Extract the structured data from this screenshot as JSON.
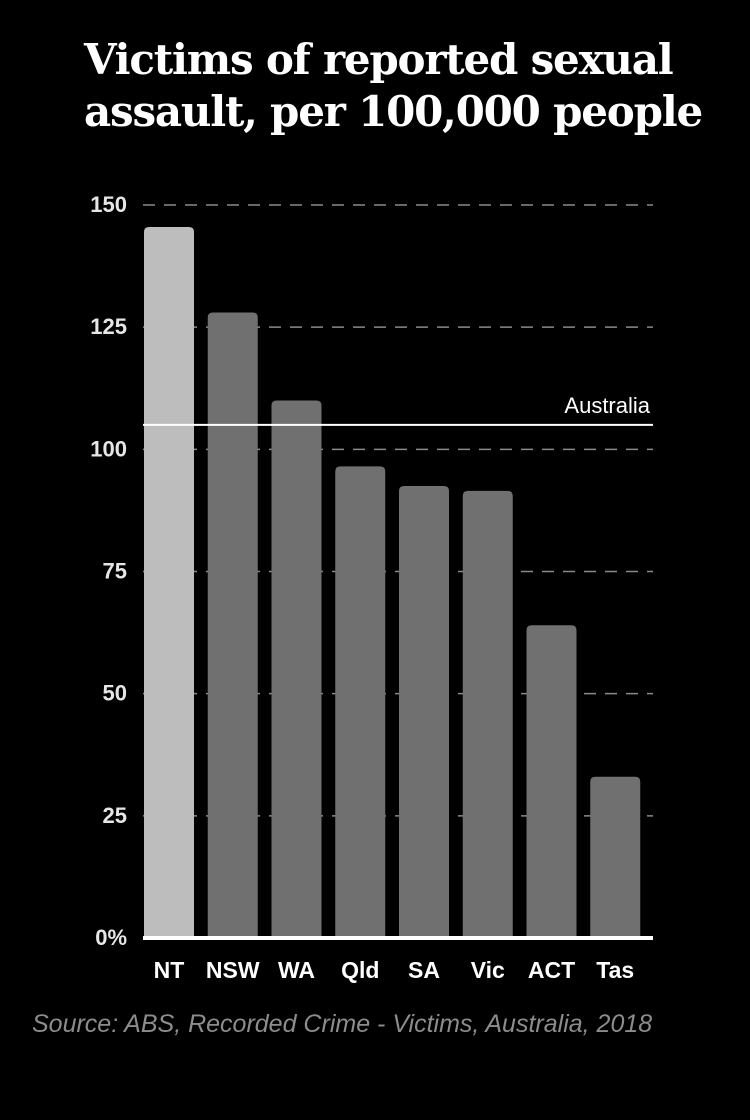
{
  "chart_data": {
    "type": "bar",
    "title": "Victims of reported sexual assault, per 100,000 people",
    "categories": [
      "NT",
      "NSW",
      "WA",
      "Qld",
      "SA",
      "Vic",
      "ACT",
      "Tas"
    ],
    "values": [
      145.5,
      128,
      110,
      96.5,
      92.5,
      91.5,
      64,
      33
    ],
    "highlight_category": "NT",
    "ylim": [
      0,
      150
    ],
    "yticks": [
      0,
      25,
      50,
      75,
      100,
      125,
      150
    ],
    "ytick_labels": [
      "0%",
      "25",
      "50",
      "75",
      "100",
      "125",
      "150"
    ],
    "grid": true,
    "reference_line": {
      "label": "Australia",
      "value": 105
    },
    "colors": {
      "background": "#000000",
      "bar": "#707070",
      "highlight_bar": "#bdbdbd",
      "grid": "#8a8a8a",
      "text": "#ffffff"
    }
  },
  "source": "Source: ABS, Recorded Crime - Victims, Australia, 2018"
}
